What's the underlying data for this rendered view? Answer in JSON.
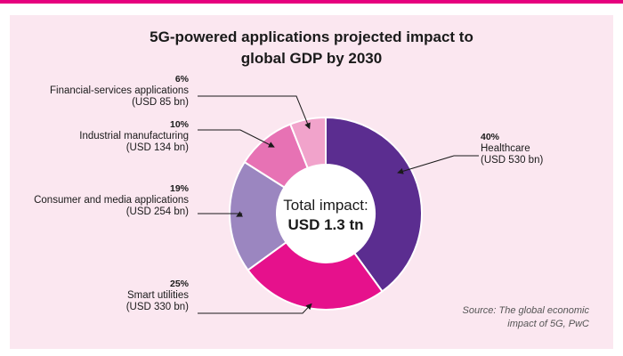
{
  "chart_data": {
    "type": "pie",
    "variant": "donut",
    "title_line1": "5G-powered applications projected impact to",
    "title_line2": "global GDP by 2030",
    "center_line1": "Total impact:",
    "center_line2": "USD 1.3 tn",
    "source_line1": "Source: The global economic",
    "source_line2": "impact of 5G, PwC",
    "slices": [
      {
        "name": "Healthcare",
        "percent": 40,
        "percent_label": "40%",
        "value_label": "(USD 530 bn)",
        "value": 530,
        "color": "#5b2d90"
      },
      {
        "name": "Smart utilities",
        "percent": 25,
        "percent_label": "25%",
        "value_label": "(USD 330 bn)",
        "value": 330,
        "color": "#e6118c"
      },
      {
        "name": "Consumer and media applications",
        "percent": 19,
        "percent_label": "19%",
        "value_label": "(USD 254 bn)",
        "value": 254,
        "color": "#9b86c0"
      },
      {
        "name": "Industrial manufacturing",
        "percent": 10,
        "percent_label": "10%",
        "value_label": "(USD 134 bn)",
        "value": 134,
        "color": "#e772b4"
      },
      {
        "name": "Financial-services applications",
        "percent": 6,
        "percent_label": "6%",
        "value_label": "(USD 85 bn)",
        "value": 85,
        "color": "#f1a3cb"
      }
    ]
  }
}
